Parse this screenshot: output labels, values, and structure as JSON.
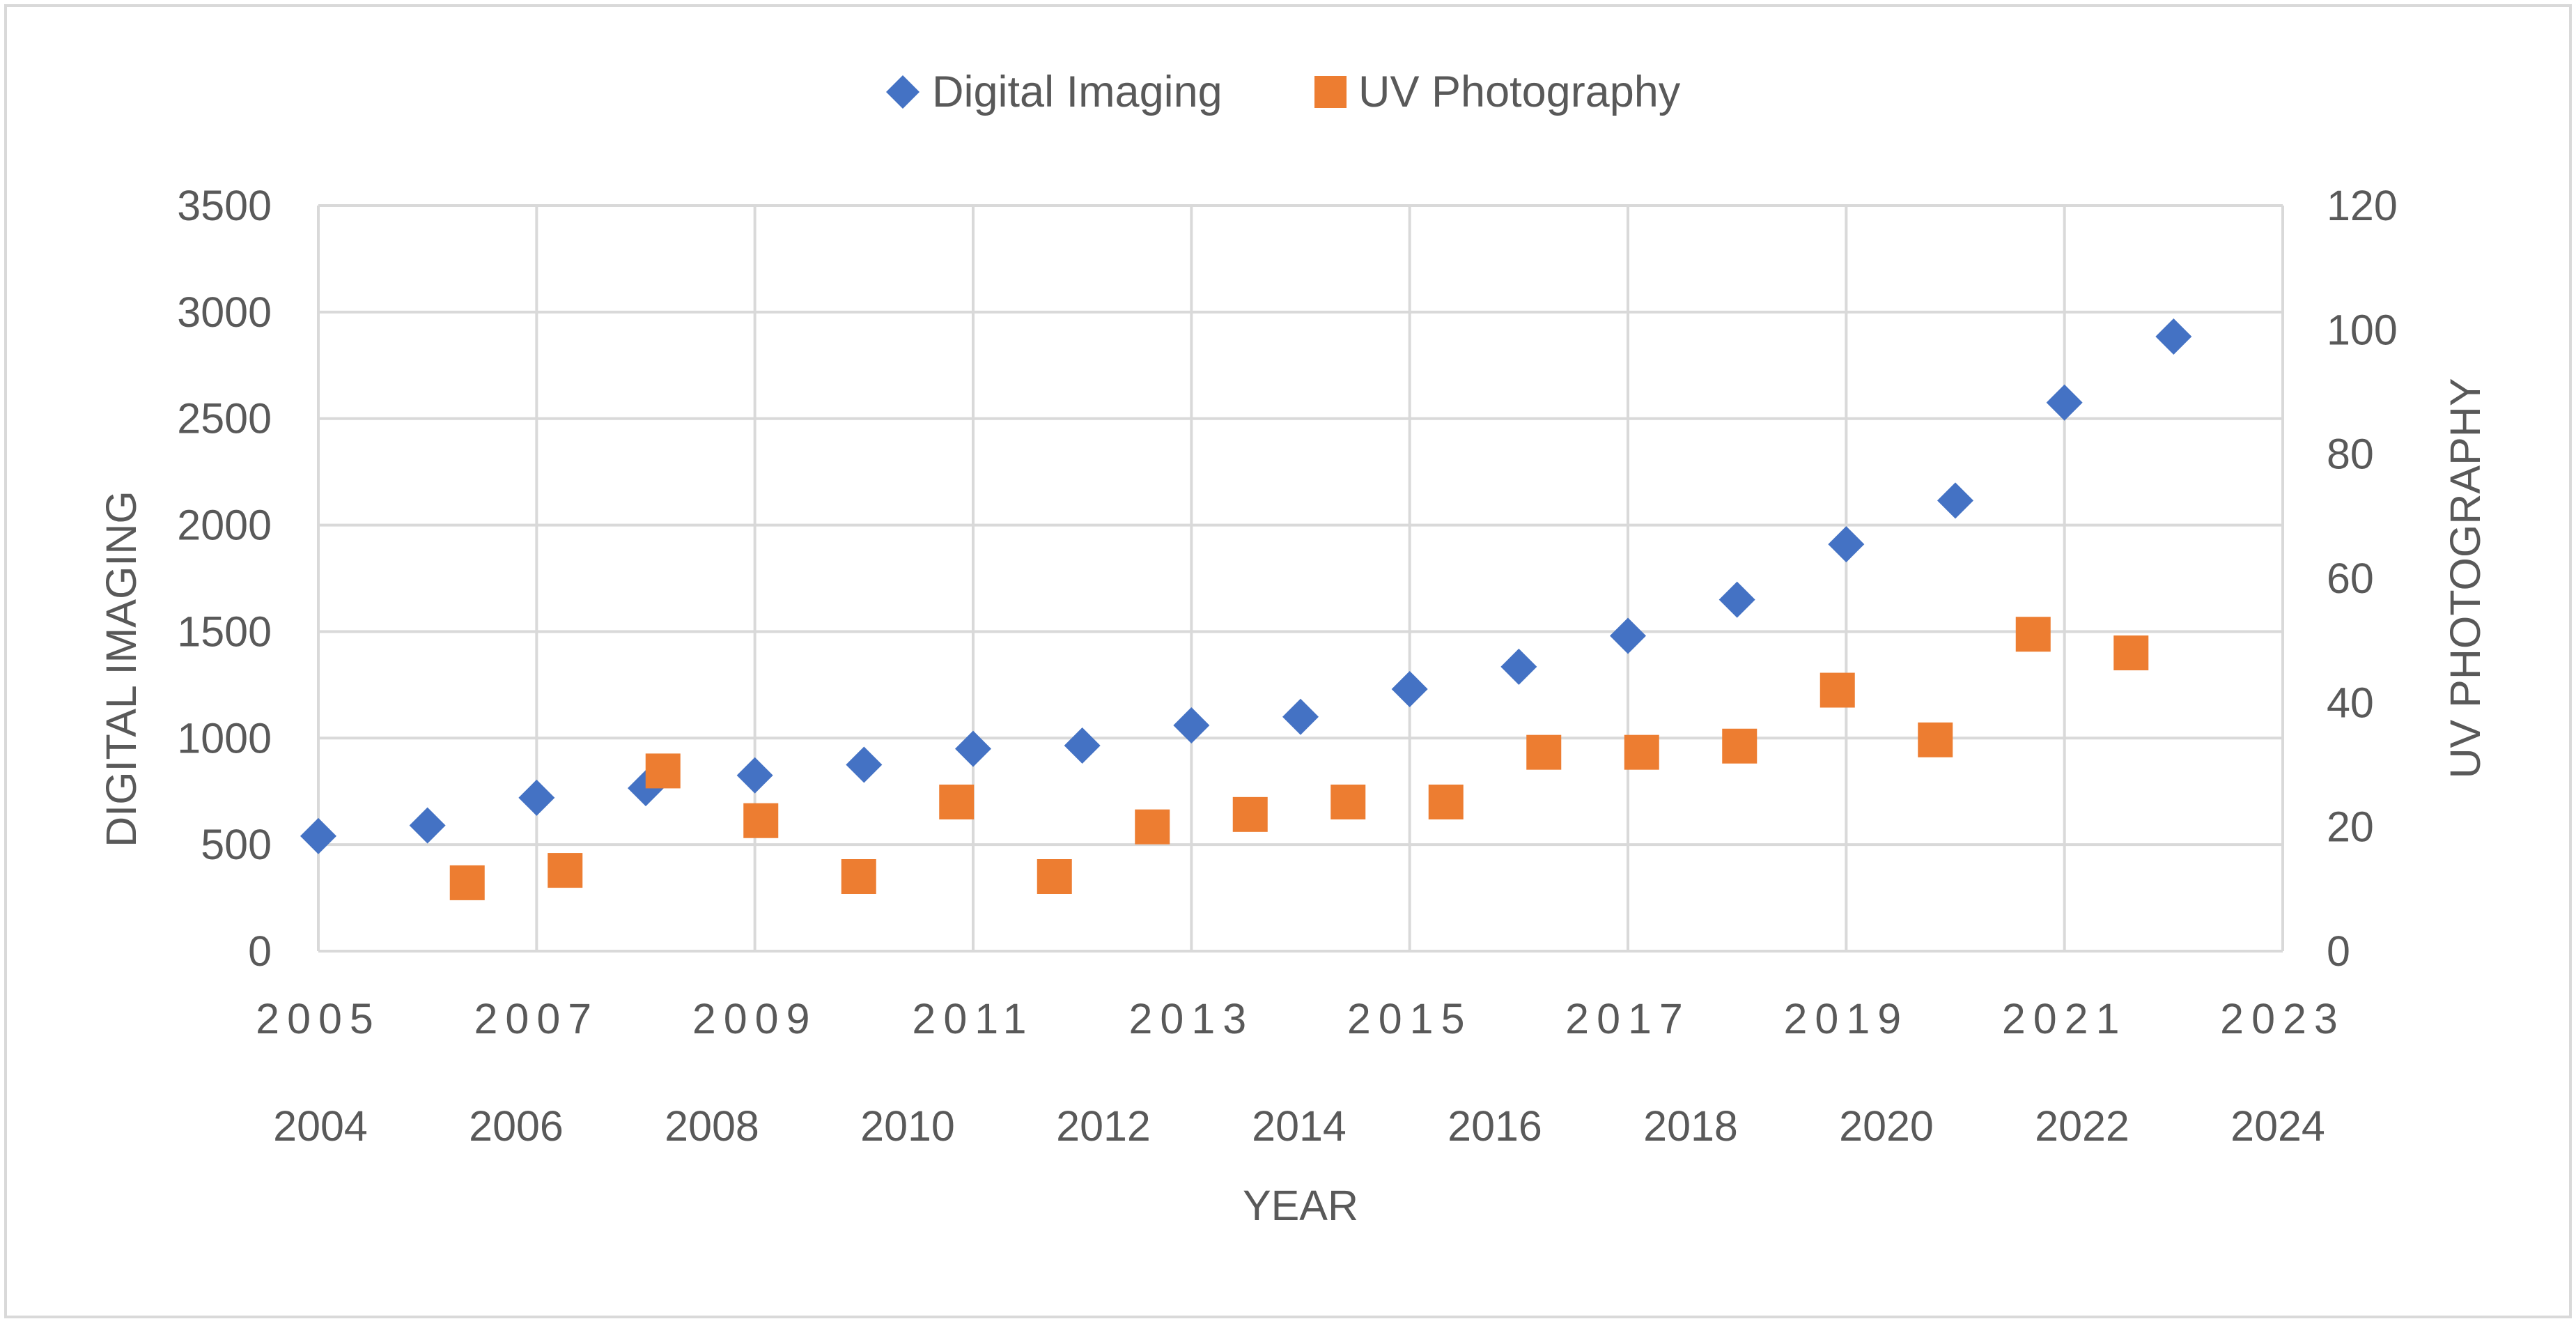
{
  "chart_data": {
    "type": "scatter",
    "legend_position": "top",
    "xlabel": "YEAR",
    "ylabel": "DIGITAL IMAGING",
    "y2label": "UV PHOTOGRAPHY",
    "grid": true,
    "x_primary": {
      "range": [
        2005,
        2023
      ],
      "ticks": [
        "2005",
        "2007",
        "2009",
        "2011",
        "2013",
        "2015",
        "2017",
        "2019",
        "2021",
        "2023"
      ]
    },
    "x_secondary": {
      "range": [
        2004,
        2024
      ],
      "ticks": [
        "2004",
        "2006",
        "2008",
        "2010",
        "2012",
        "2014",
        "2016",
        "2018",
        "2020",
        "2022",
        "2024"
      ]
    },
    "y_left": {
      "range": [
        0,
        3500
      ],
      "ticks": [
        "0",
        "500",
        "1000",
        "1500",
        "2000",
        "2500",
        "3000",
        "3500"
      ]
    },
    "y_right": {
      "range": [
        0,
        120
      ],
      "ticks": [
        "0",
        "20",
        "40",
        "60",
        "80",
        "100",
        "120"
      ]
    },
    "series": [
      {
        "name": "Digital Imaging",
        "marker": "diamond",
        "color": "#4472C4",
        "axes": "primary",
        "x": [
          2005,
          2006,
          2007,
          2008,
          2009,
          2010,
          2011,
          2012,
          2013,
          2014,
          2015,
          2016,
          2017,
          2018,
          2019,
          2020,
          2021,
          2022
        ],
        "y": [
          540,
          590,
          720,
          765,
          825,
          875,
          950,
          965,
          1060,
          1100,
          1230,
          1335,
          1480,
          1650,
          1910,
          2115,
          2575,
          2885
        ]
      },
      {
        "name": "UV Photography",
        "marker": "square",
        "color": "#ED7D31",
        "axes": "secondary",
        "x": [
          2005,
          2006,
          2007,
          2008,
          2009,
          2010,
          2011,
          2012,
          2013,
          2014,
          2015,
          2016,
          2017,
          2018,
          2019,
          2020,
          2021,
          2022
        ],
        "y": [
          11,
          13,
          29,
          21,
          12,
          24,
          12,
          20,
          22,
          24,
          24,
          32,
          32,
          33,
          42,
          34,
          51,
          48
        ]
      }
    ]
  }
}
